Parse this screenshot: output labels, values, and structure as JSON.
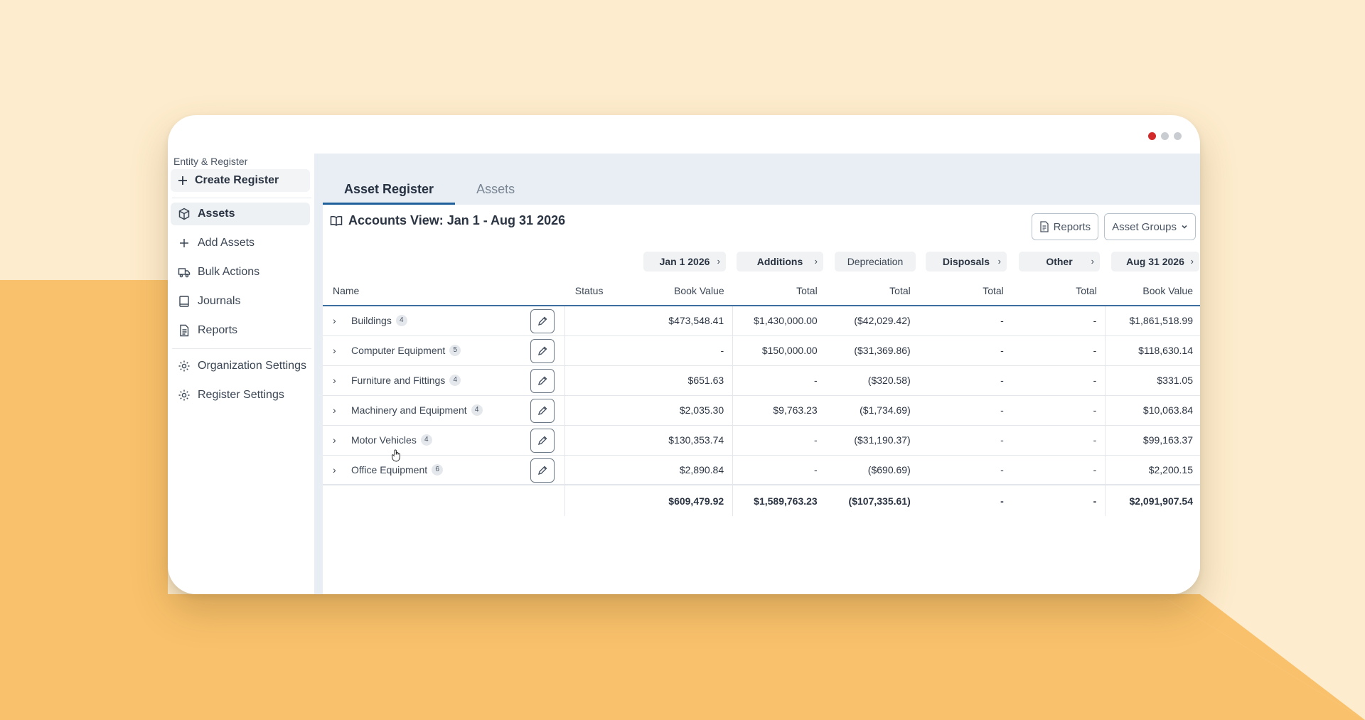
{
  "colors": {
    "accent": "#1f5f9a",
    "background": "#fdeccd",
    "background_shape": "#f9c16b"
  },
  "window": {
    "controls": [
      "red-dot",
      "gray-dot",
      "gray-dot"
    ]
  },
  "sidebar": {
    "heading": "Entity & Register",
    "create_register": {
      "label": "Create Register",
      "icon": "plus-icon"
    },
    "items": [
      {
        "label": "Assets",
        "icon": "cube-icon",
        "active": true
      },
      {
        "label": "Add Assets",
        "icon": "plus-icon"
      },
      {
        "label": "Bulk Actions",
        "icon": "truck-icon"
      },
      {
        "label": "Journals",
        "icon": "book-icon"
      },
      {
        "label": "Reports",
        "icon": "document-icon"
      },
      {
        "label": "Organization Settings",
        "icon": "gear-icon"
      },
      {
        "label": "Register Settings",
        "icon": "gear-icon"
      }
    ]
  },
  "tabs": [
    {
      "label": "Asset Register",
      "active": true
    },
    {
      "label": "Assets",
      "active": false
    }
  ],
  "view": {
    "title": "Accounts View: Jan 1 - Aug 31 2026",
    "reports_button": "Reports",
    "asset_groups_button": "Asset Groups"
  },
  "periods": [
    "Jan 1 2026",
    "Additions",
    "Depreciation",
    "Disposals",
    "Other",
    "Aug 31 2026"
  ],
  "columns": [
    "Name",
    "Status",
    "Book Value",
    "Total",
    "Total",
    "Total",
    "Total",
    "Book Value"
  ],
  "rows": [
    {
      "name": "Buildings",
      "count": "4",
      "status": "",
      "open": "$473,548.41",
      "additions": "$1,430,000.00",
      "depreciation": "($42,029.42)",
      "disposals": "-",
      "other": "-",
      "close": "$1,861,518.99"
    },
    {
      "name": "Computer Equipment",
      "count": "5",
      "status": "",
      "open": "-",
      "additions": "$150,000.00",
      "depreciation": "($31,369.86)",
      "disposals": "-",
      "other": "-",
      "close": "$118,630.14"
    },
    {
      "name": "Furniture and Fittings",
      "count": "4",
      "status": "",
      "open": "$651.63",
      "additions": "-",
      "depreciation": "($320.58)",
      "disposals": "-",
      "other": "-",
      "close": "$331.05"
    },
    {
      "name": "Machinery and Equipment",
      "count": "4",
      "status": "",
      "open": "$2,035.30",
      "additions": "$9,763.23",
      "depreciation": "($1,734.69)",
      "disposals": "-",
      "other": "-",
      "close": "$10,063.84"
    },
    {
      "name": "Motor Vehicles",
      "count": "4",
      "status": "",
      "open": "$130,353.74",
      "additions": "-",
      "depreciation": "($31,190.37)",
      "disposals": "-",
      "other": "-",
      "close": "$99,163.37"
    },
    {
      "name": "Office Equipment",
      "count": "6",
      "status": "",
      "open": "$2,890.84",
      "additions": "-",
      "depreciation": "($690.69)",
      "disposals": "-",
      "other": "-",
      "close": "$2,200.15"
    }
  ],
  "totals": {
    "open": "$609,479.92",
    "additions": "$1,589,763.23",
    "depreciation": "($107,335.61)",
    "disposals": "-",
    "other": "-",
    "close": "$2,091,907.54"
  }
}
